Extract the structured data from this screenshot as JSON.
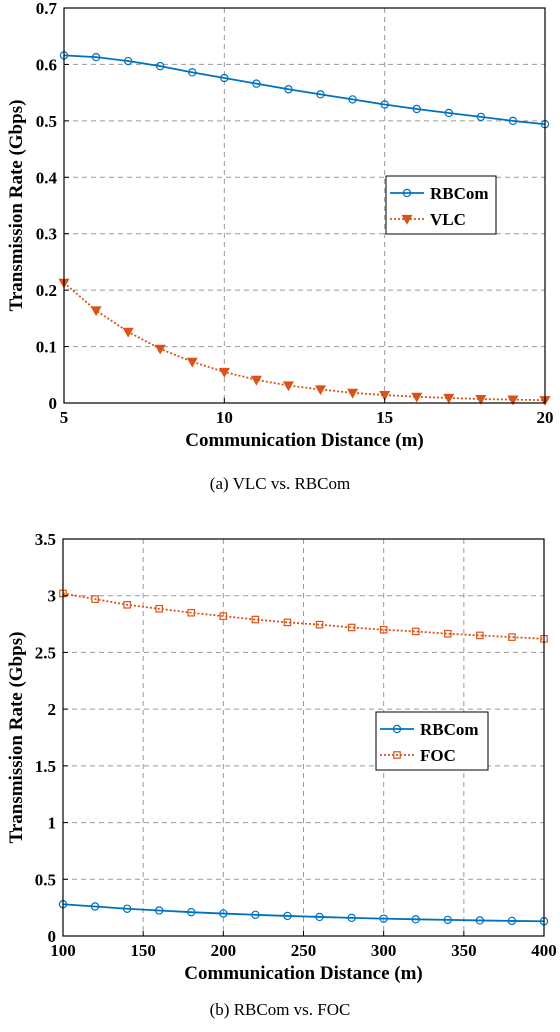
{
  "chart_data": [
    {
      "type": "line",
      "caption": "(a) VLC vs. RBCom",
      "xlabel": "Communication Distance (m)",
      "ylabel": "Transmission Rate (Gbps)",
      "xlim": [
        5,
        20
      ],
      "ylim": [
        0,
        0.7
      ],
      "xticks": [
        5,
        10,
        15,
        20
      ],
      "yticks": [
        0,
        0.1,
        0.2,
        0.3,
        0.4,
        0.5,
        0.6,
        0.7
      ],
      "xtick_labels": [
        "5",
        "10",
        "15",
        "20"
      ],
      "ytick_labels": [
        "0",
        "0.1",
        "0.2",
        "0.3",
        "0.4",
        "0.5",
        "0.6",
        "0.7"
      ],
      "grid": true,
      "legend_position": "right",
      "x": [
        5,
        6,
        7,
        8,
        9,
        10,
        11,
        12,
        13,
        14,
        15,
        16,
        17,
        18,
        19,
        20
      ],
      "series": [
        {
          "name": "RBCom",
          "color": "#0072BD",
          "marker": "circle",
          "dash": "solid",
          "values": [
            0.616,
            0.613,
            0.606,
            0.597,
            0.586,
            0.576,
            0.566,
            0.556,
            0.547,
            0.538,
            0.529,
            0.521,
            0.514,
            0.507,
            0.5,
            0.494
          ]
        },
        {
          "name": "VLC",
          "color": "#D95319",
          "marker": "triangle-down",
          "dash": "dotted",
          "values": [
            0.213,
            0.164,
            0.126,
            0.096,
            0.073,
            0.055,
            0.041,
            0.031,
            0.024,
            0.018,
            0.014,
            0.011,
            0.009,
            0.007,
            0.006,
            0.005
          ]
        }
      ]
    },
    {
      "type": "line",
      "caption": "(b) RBCom vs. FOC",
      "xlabel": "Communication Distance (m)",
      "ylabel": "Transmission Rate (Gbps)",
      "xlim": [
        100,
        400
      ],
      "ylim": [
        0,
        3.5
      ],
      "xticks": [
        100,
        150,
        200,
        250,
        300,
        350,
        400
      ],
      "yticks": [
        0,
        0.5,
        1,
        1.5,
        2,
        2.5,
        3,
        3.5
      ],
      "xtick_labels": [
        "100",
        "150",
        "200",
        "250",
        "300",
        "350",
        "400"
      ],
      "ytick_labels": [
        "0",
        "0.5",
        "1",
        "1.5",
        "2",
        "2.5",
        "3",
        "3.5"
      ],
      "grid": true,
      "legend_position": "right",
      "x": [
        100,
        120,
        140,
        160,
        180,
        200,
        220,
        240,
        260,
        280,
        300,
        320,
        340,
        360,
        380,
        400
      ],
      "series": [
        {
          "name": "RBCom",
          "color": "#0072BD",
          "marker": "circle",
          "dash": "solid",
          "values": [
            0.28,
            0.26,
            0.24,
            0.225,
            0.21,
            0.198,
            0.187,
            0.177,
            0.168,
            0.16,
            0.153,
            0.147,
            0.142,
            0.137,
            0.133,
            0.13
          ]
        },
        {
          "name": "FOC",
          "color": "#D95319",
          "marker": "square",
          "dash": "dotted",
          "values": [
            3.02,
            2.97,
            2.92,
            2.885,
            2.85,
            2.82,
            2.79,
            2.765,
            2.745,
            2.72,
            2.7,
            2.685,
            2.665,
            2.65,
            2.635,
            2.62
          ]
        }
      ]
    }
  ]
}
